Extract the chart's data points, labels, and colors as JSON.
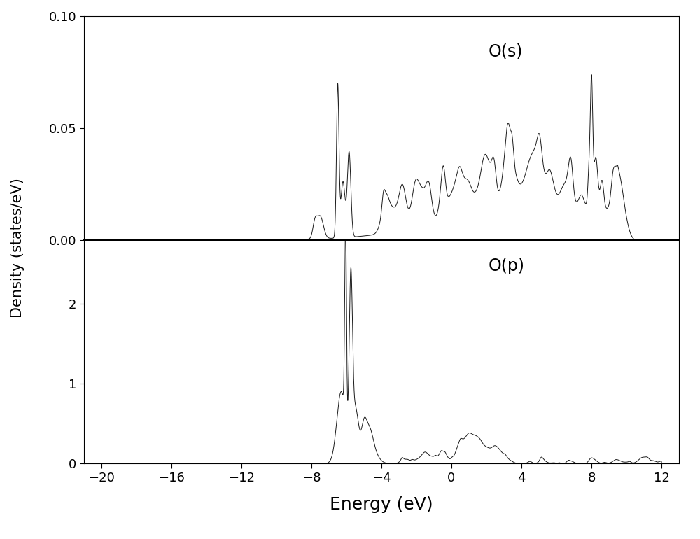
{
  "xlim": [
    -21,
    13
  ],
  "xticks": [
    -20,
    -16,
    -12,
    -8,
    -4,
    0,
    4,
    8,
    12
  ],
  "xlabel": "Energy (eV)",
  "ylabel": "Density (states/eV)",
  "os_ylim": [
    0,
    0.1
  ],
  "os_yticks": [
    0,
    0.05,
    0.1
  ],
  "op_ylim": [
    0,
    2.8
  ],
  "op_yticks": [
    0,
    1,
    2
  ],
  "os_label": "O(s)",
  "op_label": "O(p)",
  "line_color": "#1a1a1a",
  "line_width": 0.7,
  "background_color": "#ffffff",
  "label_fontsize": 15,
  "tick_fontsize": 13,
  "annotation_fontsize": 17
}
